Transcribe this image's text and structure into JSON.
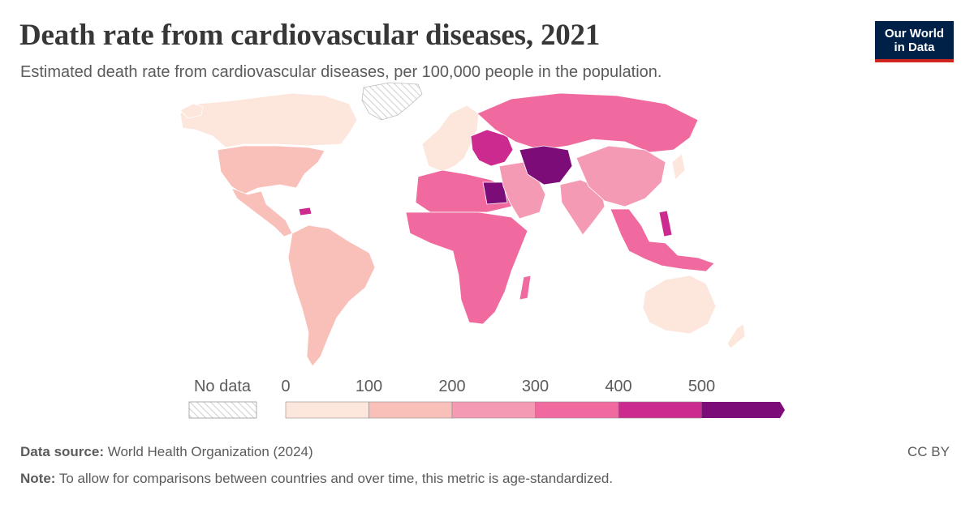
{
  "header": {
    "title": "Death rate from cardiovascular diseases, 2021",
    "subtitle": "Estimated death rate from cardiovascular diseases, per 100,000 people in the population."
  },
  "logo": {
    "line1": "Our World",
    "line2": "in Data",
    "bg": "#002147",
    "accent": "#ce261e"
  },
  "legend": {
    "no_data_label": "No data",
    "ticks": [
      "0",
      "100",
      "200",
      "300",
      "400",
      "500"
    ],
    "bins": [
      {
        "from": 0,
        "to": 100,
        "color": "#fde6dc"
      },
      {
        "from": 100,
        "to": 200,
        "color": "#f9bfb9"
      },
      {
        "from": 200,
        "to": 300,
        "color": "#f59ab4"
      },
      {
        "from": 300,
        "to": 400,
        "color": "#f06a9f"
      },
      {
        "from": 400,
        "to": 500,
        "color": "#cc2a8f"
      },
      {
        "from": 500,
        "to": null,
        "color": "#7b0c78"
      }
    ]
  },
  "regions": [
    {
      "name": "north-america",
      "bin": 0
    },
    {
      "name": "usa",
      "bin": 1
    },
    {
      "name": "mexico-central-america",
      "bin": 1
    },
    {
      "name": "south-america",
      "bin": 1
    },
    {
      "name": "western-europe",
      "bin": 0
    },
    {
      "name": "eastern-europe",
      "bin": 4
    },
    {
      "name": "russia",
      "bin": 3
    },
    {
      "name": "north-africa",
      "bin": 3
    },
    {
      "name": "sub-saharan-africa",
      "bin": 3
    },
    {
      "name": "middle-east",
      "bin": 2
    },
    {
      "name": "central-asia",
      "bin": 5
    },
    {
      "name": "south-asia",
      "bin": 2
    },
    {
      "name": "china",
      "bin": 2
    },
    {
      "name": "southeast-asia",
      "bin": 3
    },
    {
      "name": "australia",
      "bin": 0
    },
    {
      "name": "new-zealand",
      "bin": 0
    }
  ],
  "footer": {
    "source_label": "Data source:",
    "source_text": "World Health Organization (2024)",
    "note_label": "Note:",
    "note_text": "To allow for comparisons between countries and over time, this metric is age-standardized.",
    "license": "CC BY"
  }
}
